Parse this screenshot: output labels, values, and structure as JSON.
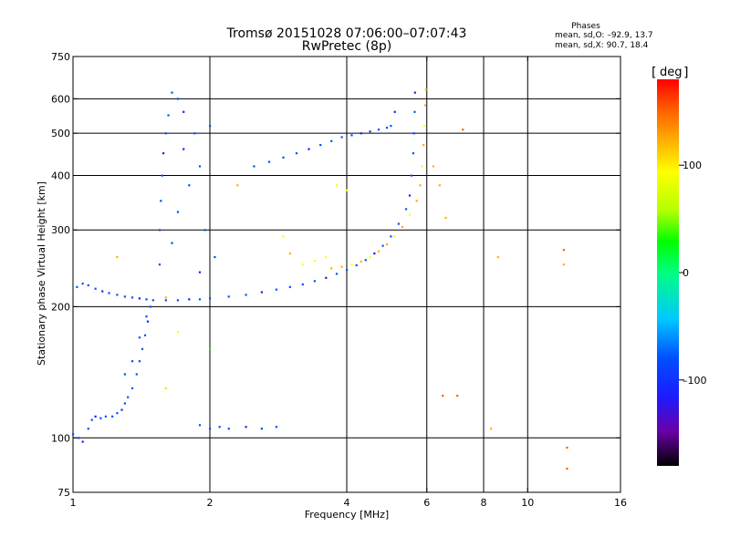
{
  "header": {
    "title_line1": "Tromsø 20151028 07:06:00–07:07:43",
    "title_line2": "RwPretec (8p)",
    "stats_title": "Phases",
    "stats_o": "mean, sd,O: –92.9, 13.7",
    "stats_x": "mean, sd,X:  90.7, 18.4"
  },
  "colorbar": {
    "unit_label": "deg",
    "ticks": [
      {
        "value": 100,
        "label": "100"
      },
      {
        "value": 0,
        "label": "0"
      },
      {
        "value": -100,
        "label": "–100"
      }
    ],
    "range": [
      -180,
      180
    ]
  },
  "colors": {
    "grid": "#000000",
    "colormap": [
      "#000000",
      "#6a00a8",
      "#1c1cff",
      "#0050ff",
      "#00c8ff",
      "#00ff80",
      "#00ff00",
      "#b4ff00",
      "#ffff00",
      "#ffb000",
      "#ff6000",
      "#ff0000"
    ]
  },
  "chart_data": {
    "type": "scatter",
    "title": "Tromsø 20151028 07:06:00–07:07:43",
    "subtitle": "RwPretec (8p)",
    "xlabel": "Frequency [MHz]",
    "ylabel": "Stationary phase Virtual Height [km]",
    "xscale": "log",
    "yscale": "log",
    "xlim": [
      1,
      16
    ],
    "ylim": [
      75,
      750
    ],
    "xticks": [
      {
        "value": 1,
        "label": "1"
      },
      {
        "value": 2,
        "label": "2"
      },
      {
        "value": 4,
        "label": "4"
      },
      {
        "value": 6,
        "label": "6"
      },
      {
        "value": 8,
        "label": "8"
      },
      {
        "value": 10,
        "label": "10"
      },
      {
        "value": 16,
        "label": "16"
      }
    ],
    "yticks": [
      {
        "value": 75,
        "label": "75"
      },
      {
        "value": 100,
        "label": "100"
      },
      {
        "value": 200,
        "label": "200"
      },
      {
        "value": 300,
        "label": "300"
      },
      {
        "value": 400,
        "label": "400"
      },
      {
        "value": 500,
        "label": "500"
      },
      {
        "value": 600,
        "label": "600"
      },
      {
        "value": 750,
        "label": "750"
      }
    ],
    "grid_x": [
      2,
      4,
      6,
      8,
      10
    ],
    "grid_y": [
      100,
      200,
      300,
      400,
      500,
      600
    ],
    "color_scale": "phase",
    "points": [
      [
        1.0,
        102,
        -95
      ],
      [
        1.03,
        100,
        -90
      ],
      [
        1.05,
        98,
        -100
      ],
      [
        1.08,
        105,
        -85
      ],
      [
        1.1,
        110,
        -95
      ],
      [
        1.12,
        112,
        -100
      ],
      [
        1.15,
        111,
        -92
      ],
      [
        1.18,
        112,
        -98
      ],
      [
        1.22,
        112,
        -88
      ],
      [
        1.25,
        114,
        -95
      ],
      [
        1.28,
        116,
        -100
      ],
      [
        1.3,
        120,
        -92
      ],
      [
        1.32,
        124,
        -96
      ],
      [
        1.35,
        130,
        -90
      ],
      [
        1.38,
        140,
        -94
      ],
      [
        1.4,
        150,
        -98
      ],
      [
        1.42,
        160,
        -92
      ],
      [
        1.44,
        172,
        -95
      ],
      [
        1.46,
        185,
        -100
      ],
      [
        1.48,
        200,
        -92
      ],
      [
        1.3,
        140,
        -90
      ],
      [
        1.35,
        150,
        -80
      ],
      [
        1.4,
        170,
        -95
      ],
      [
        1.45,
        190,
        -85
      ],
      [
        1.02,
        222,
        -95
      ],
      [
        1.05,
        226,
        -98
      ],
      [
        1.08,
        224,
        -92
      ],
      [
        1.12,
        220,
        -96
      ],
      [
        1.16,
        217,
        -100
      ],
      [
        1.2,
        215,
        -94
      ],
      [
        1.25,
        213,
        -98
      ],
      [
        1.3,
        211,
        -92
      ],
      [
        1.35,
        210,
        -96
      ],
      [
        1.4,
        209,
        -100
      ],
      [
        1.45,
        208,
        -95
      ],
      [
        1.5,
        207,
        -98
      ],
      [
        1.6,
        207,
        -92
      ],
      [
        1.7,
        207,
        -96
      ],
      [
        1.8,
        208,
        -100
      ],
      [
        1.9,
        208,
        -95
      ],
      [
        2.0,
        209,
        -98
      ],
      [
        2.2,
        211,
        -92
      ],
      [
        2.4,
        213,
        -96
      ],
      [
        2.6,
        216,
        -100
      ],
      [
        2.8,
        219,
        -95
      ],
      [
        3.0,
        222,
        -98
      ],
      [
        3.2,
        225,
        -92
      ],
      [
        3.4,
        229,
        -96
      ],
      [
        3.6,
        233,
        -100
      ],
      [
        3.8,
        238,
        -95
      ],
      [
        4.0,
        243,
        -98
      ],
      [
        4.2,
        249,
        -92
      ],
      [
        4.4,
        256,
        -96
      ],
      [
        4.6,
        265,
        -100
      ],
      [
        4.8,
        276,
        -95
      ],
      [
        5.0,
        290,
        -98
      ],
      [
        5.2,
        310,
        -92
      ],
      [
        5.4,
        335,
        -96
      ],
      [
        5.5,
        360,
        -100
      ],
      [
        5.55,
        400,
        -95
      ],
      [
        5.6,
        450,
        -98
      ],
      [
        5.62,
        500,
        -92
      ],
      [
        5.64,
        560,
        -96
      ],
      [
        5.65,
        620,
        -100
      ],
      [
        1.55,
        250,
        -95
      ],
      [
        1.55,
        300,
        -98
      ],
      [
        1.56,
        350,
        -92
      ],
      [
        1.57,
        400,
        -96
      ],
      [
        1.58,
        450,
        -100
      ],
      [
        1.6,
        500,
        -95
      ],
      [
        1.62,
        550,
        -98
      ],
      [
        1.65,
        620,
        -92
      ],
      [
        1.7,
        600,
        -96
      ],
      [
        1.75,
        560,
        -100
      ],
      [
        1.65,
        280,
        -95
      ],
      [
        1.7,
        330,
        -98
      ],
      [
        1.8,
        380,
        -92
      ],
      [
        1.9,
        420,
        -96
      ],
      [
        1.75,
        460,
        -100
      ],
      [
        1.85,
        500,
        -95
      ],
      [
        2.0,
        520,
        -98
      ],
      [
        1.95,
        300,
        -92
      ],
      [
        2.05,
        260,
        -96
      ],
      [
        1.9,
        240,
        -100
      ],
      [
        2.5,
        420,
        -95
      ],
      [
        2.7,
        430,
        -98
      ],
      [
        2.9,
        440,
        -92
      ],
      [
        3.1,
        450,
        -96
      ],
      [
        3.3,
        460,
        -100
      ],
      [
        3.5,
        470,
        -95
      ],
      [
        3.7,
        480,
        -98
      ],
      [
        3.9,
        490,
        -92
      ],
      [
        4.1,
        495,
        -96
      ],
      [
        4.3,
        500,
        -100
      ],
      [
        4.5,
        505,
        -95
      ],
      [
        4.7,
        510,
        -98
      ],
      [
        4.9,
        515,
        -92
      ],
      [
        5.0,
        520,
        -96
      ],
      [
        5.1,
        560,
        -100
      ],
      [
        2.2,
        105,
        -95
      ],
      [
        2.1,
        106,
        -98
      ],
      [
        2.0,
        105,
        -92
      ],
      [
        1.9,
        107,
        -96
      ],
      [
        2.4,
        106,
        -100
      ],
      [
        2.6,
        105,
        -95
      ],
      [
        2.8,
        106,
        -98
      ],
      [
        3.7,
        245,
        100
      ],
      [
        3.9,
        247,
        105
      ],
      [
        4.1,
        250,
        98
      ],
      [
        4.3,
        254,
        102
      ],
      [
        4.5,
        260,
        96
      ],
      [
        4.7,
        268,
        100
      ],
      [
        4.9,
        278,
        104
      ],
      [
        5.1,
        290,
        98
      ],
      [
        5.3,
        305,
        102
      ],
      [
        5.5,
        325,
        96
      ],
      [
        5.7,
        350,
        100
      ],
      [
        5.8,
        380,
        104
      ],
      [
        5.85,
        420,
        98
      ],
      [
        5.9,
        470,
        102
      ],
      [
        5.92,
        520,
        96
      ],
      [
        5.95,
        580,
        100
      ],
      [
        5.97,
        630,
        104
      ],
      [
        3.4,
        255,
        95
      ],
      [
        3.6,
        260,
        92
      ],
      [
        3.2,
        250,
        98
      ],
      [
        3.0,
        265,
        100
      ],
      [
        2.9,
        290,
        96
      ],
      [
        3.8,
        380,
        90
      ],
      [
        4.0,
        370,
        96
      ],
      [
        6.2,
        420,
        110
      ],
      [
        6.4,
        380,
        115
      ],
      [
        6.6,
        320,
        105
      ],
      [
        12.0,
        270,
        140
      ],
      [
        12.0,
        250,
        130
      ],
      [
        12.2,
        95,
        150
      ],
      [
        12.2,
        85,
        145
      ],
      [
        6.5,
        125,
        150
      ],
      [
        7.0,
        125,
        145
      ],
      [
        8.3,
        105,
        120
      ],
      [
        8.6,
        260,
        110
      ],
      [
        7.2,
        510,
        140
      ],
      [
        1.7,
        175,
        80
      ],
      [
        2.0,
        160,
        20
      ],
      [
        1.6,
        130,
        60
      ],
      [
        1.25,
        260,
        110
      ],
      [
        1.6,
        210,
        115
      ],
      [
        2.3,
        380,
        105
      ]
    ]
  }
}
